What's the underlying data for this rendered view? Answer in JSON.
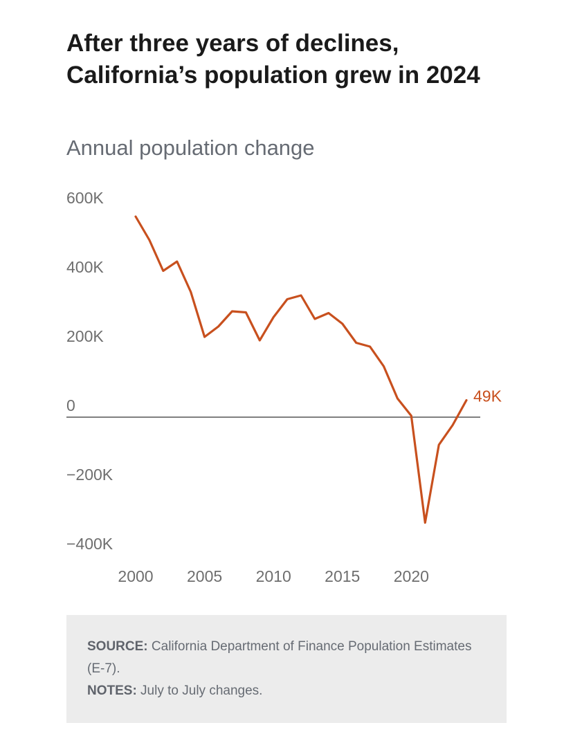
{
  "colors": {
    "line": "#c8501e",
    "zero_line": "#555555",
    "notes_bg": "#ececec"
  },
  "chart_data": {
    "type": "line",
    "title": "After three years of declines, California’s population grew in 2024",
    "subtitle": "Annual population change",
    "xlabel": "",
    "ylabel": "",
    "xlim": [
      2000,
      2024
    ],
    "ylim": [
      -400000,
      600000
    ],
    "x_ticks": [
      2000,
      2005,
      2010,
      2015,
      2020
    ],
    "x_tick_labels": [
      "2000",
      "2005",
      "2010",
      "2015",
      "2020"
    ],
    "y_ticks": [
      600000,
      400000,
      200000,
      0,
      -200000,
      -400000
    ],
    "y_tick_labels": [
      "600K",
      "400K",
      "200K",
      "0",
      "−200K",
      "−400K"
    ],
    "grid": false,
    "series": [
      {
        "x": [
          2000,
          2001,
          2002,
          2003,
          2004,
          2005,
          2006,
          2007,
          2008,
          2009,
          2010,
          2011,
          2012,
          2013,
          2014,
          2015,
          2016,
          2017,
          2018,
          2019,
          2020,
          2021,
          2022,
          2023,
          2024
        ],
        "values": [
          580000,
          512000,
          423000,
          450000,
          362000,
          232000,
          262000,
          306000,
          303000,
          222000,
          289000,
          341000,
          352000,
          284000,
          301000,
          270000,
          215000,
          204000,
          147000,
          54000,
          4000,
          -305000,
          -80000,
          -23000,
          49000
        ]
      }
    ],
    "end_label": "49K"
  },
  "notes": {
    "source_label": "SOURCE:",
    "source_text": " California Department of Finance Population Estimates (E-7).",
    "notes_label": "NOTES:",
    "notes_text": " July to July changes."
  }
}
